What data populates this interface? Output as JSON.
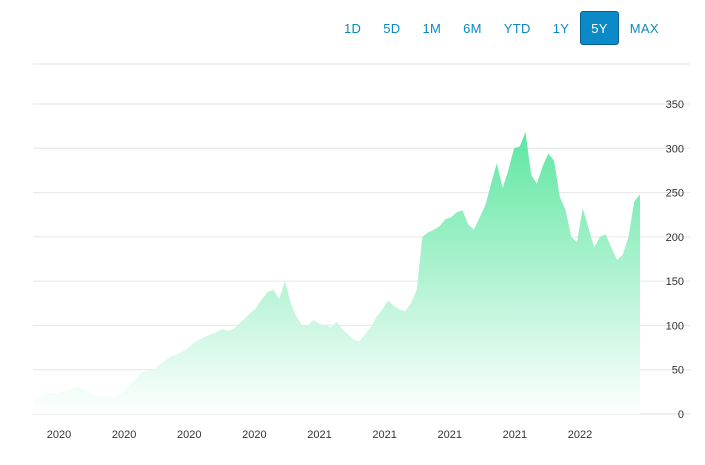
{
  "range_selector": {
    "buttons": [
      {
        "label": "1D",
        "active": false
      },
      {
        "label": "5D",
        "active": false
      },
      {
        "label": "1M",
        "active": false
      },
      {
        "label": "6M",
        "active": false
      },
      {
        "label": "YTD",
        "active": false
      },
      {
        "label": "1Y",
        "active": false
      },
      {
        "label": "5Y",
        "active": true
      },
      {
        "label": "MAX",
        "active": false
      }
    ]
  },
  "colors": {
    "accent": "#0a8bc7",
    "area_top": "#5ee6a2",
    "area_bottom": "#ffffff"
  },
  "chart_data": {
    "type": "area",
    "title": "",
    "xlabel": "",
    "ylabel": "",
    "ylim": [
      0,
      350
    ],
    "y_ticks": [
      0,
      50,
      100,
      150,
      200,
      250,
      300,
      350
    ],
    "x_tick_labels": [
      "2020",
      "2020",
      "2020",
      "2020",
      "2021",
      "2021",
      "2021",
      "2021",
      "2022"
    ],
    "grid": true,
    "legend": "none",
    "series": [
      {
        "values": [
          14,
          18,
          22,
          24,
          23,
          25,
          26,
          29,
          31,
          28,
          24,
          20,
          21,
          20,
          19,
          22,
          26,
          34,
          40,
          47,
          48,
          50,
          55,
          60,
          65,
          67,
          70,
          74,
          80,
          84,
          87,
          90,
          92,
          96,
          94,
          96,
          102,
          108,
          114,
          120,
          130,
          138,
          140,
          130,
          150,
          125,
          110,
          100,
          100,
          106,
          102,
          100,
          98,
          104,
          96,
          90,
          84,
          82,
          90,
          98,
          110,
          118,
          128,
          122,
          118,
          116,
          125,
          140,
          200,
          205,
          208,
          212,
          220,
          222,
          228,
          230,
          214,
          208,
          222,
          236,
          260,
          283,
          255,
          275,
          300,
          302,
          318,
          270,
          260,
          280,
          294,
          286,
          245,
          230,
          200,
          194,
          232,
          210,
          188,
          200,
          203,
          188,
          174,
          180,
          200,
          240,
          248
        ]
      }
    ]
  }
}
